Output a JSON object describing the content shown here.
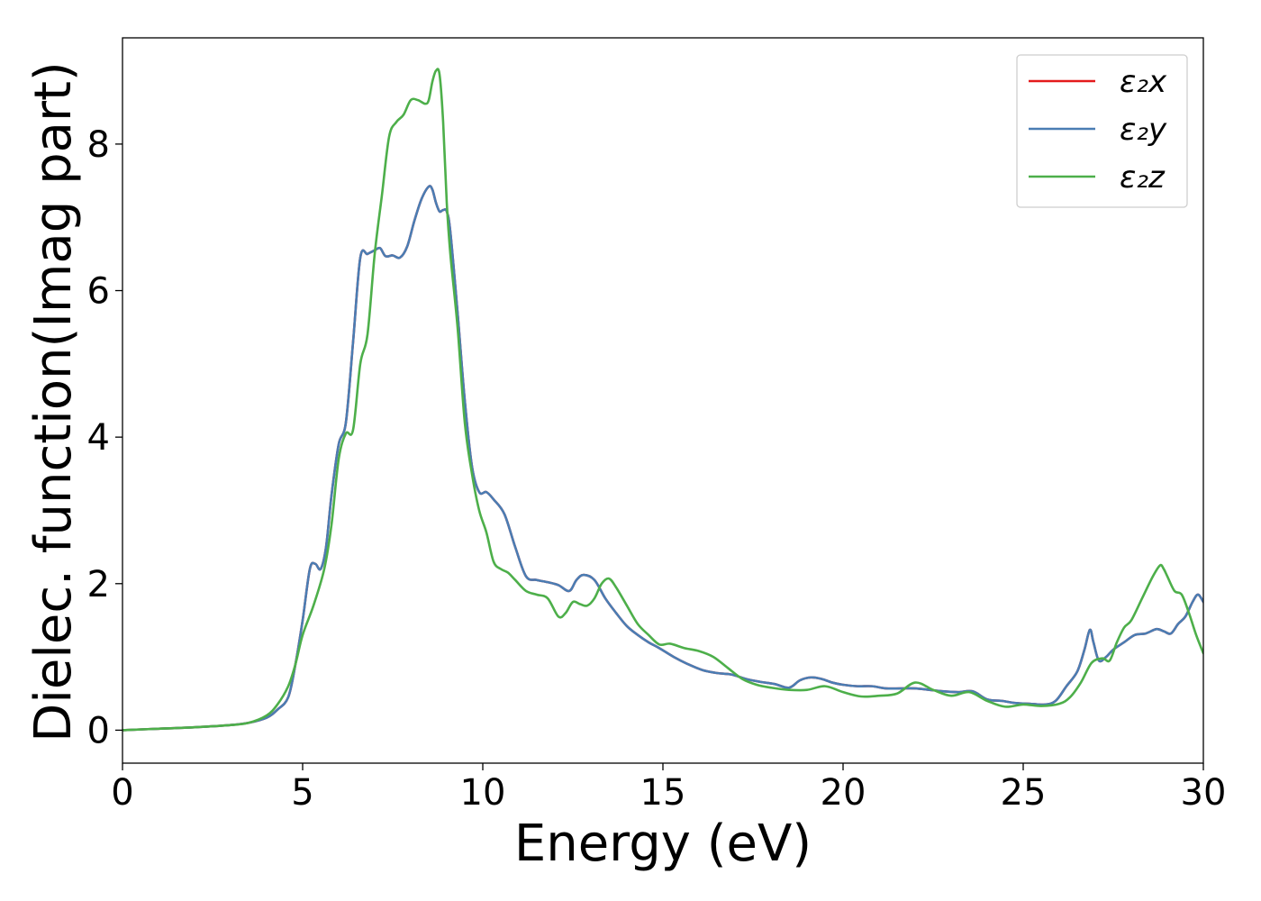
{
  "chart_data": {
    "type": "line",
    "title": "",
    "xlabel": "Energy (eV)",
    "ylabel": "Dielec. function(Imag part)",
    "xlim": [
      0,
      30
    ],
    "ylim": [
      -0.45,
      9.45
    ],
    "xticks": [
      0,
      5,
      10,
      15,
      20,
      25,
      30
    ],
    "yticks": [
      0,
      2,
      4,
      6,
      8
    ],
    "grid": false,
    "legend_position": "top-right",
    "series": [
      {
        "name": "ε₂x",
        "color": "#e41a1c",
        "x": [
          0,
          1,
          2,
          3,
          3.5,
          4,
          4.3,
          4.6,
          4.8,
          5,
          5.2,
          5.35,
          5.5,
          5.65,
          5.8,
          6,
          6.2,
          6.4,
          6.6,
          6.8,
          7,
          7.15,
          7.3,
          7.5,
          7.7,
          7.9,
          8.1,
          8.3,
          8.5,
          8.6,
          8.7,
          8.8,
          8.9,
          9,
          9.1,
          9.3,
          9.5,
          9.7,
          9.9,
          10.1,
          10.3,
          10.6,
          10.9,
          11.2,
          11.5,
          11.8,
          12.1,
          12.4,
          12.6,
          12.8,
          13.1,
          13.4,
          13.7,
          14,
          14.3,
          14.6,
          14.9,
          15.3,
          15.7,
          16.1,
          16.5,
          16.9,
          17.3,
          17.7,
          18.1,
          18.5,
          18.8,
          19.1,
          19.4,
          19.7,
          20,
          20.4,
          20.8,
          21.2,
          21.6,
          22,
          22.4,
          22.8,
          23.2,
          23.6,
          24,
          24.4,
          24.8,
          25.2,
          25.6,
          25.9,
          26.2,
          26.5,
          26.7,
          26.85,
          26.95,
          27.1,
          27.3,
          27.5,
          27.8,
          28.1,
          28.4,
          28.7,
          28.9,
          29.1,
          29.3,
          29.5,
          29.7,
          29.85,
          30
        ],
        "y": [
          0,
          0.02,
          0.04,
          0.07,
          0.1,
          0.17,
          0.28,
          0.45,
          0.9,
          1.5,
          2.2,
          2.27,
          2.2,
          2.5,
          3.2,
          3.9,
          4.2,
          5.3,
          6.45,
          6.5,
          6.55,
          6.58,
          6.47,
          6.48,
          6.45,
          6.6,
          6.95,
          7.25,
          7.42,
          7.38,
          7.2,
          7.08,
          7.1,
          7.08,
          6.8,
          5.7,
          4.5,
          3.6,
          3.25,
          3.25,
          3.15,
          2.95,
          2.5,
          2.1,
          2.05,
          2.02,
          1.98,
          1.9,
          2.05,
          2.12,
          2.05,
          1.8,
          1.6,
          1.42,
          1.3,
          1.2,
          1.12,
          1.0,
          0.9,
          0.82,
          0.78,
          0.76,
          0.7,
          0.66,
          0.63,
          0.58,
          0.68,
          0.72,
          0.7,
          0.65,
          0.62,
          0.6,
          0.6,
          0.57,
          0.57,
          0.57,
          0.55,
          0.53,
          0.52,
          0.53,
          0.42,
          0.4,
          0.37,
          0.36,
          0.35,
          0.4,
          0.6,
          0.8,
          1.1,
          1.37,
          1.2,
          0.95,
          1.0,
          1.1,
          1.2,
          1.3,
          1.32,
          1.38,
          1.35,
          1.32,
          1.45,
          1.55,
          1.75,
          1.85,
          1.75
        ]
      },
      {
        "name": "ε₂y",
        "color": "#4a7db3",
        "x": [
          0,
          1,
          2,
          3,
          3.5,
          4,
          4.3,
          4.6,
          4.8,
          5,
          5.2,
          5.35,
          5.5,
          5.65,
          5.8,
          6,
          6.2,
          6.4,
          6.6,
          6.8,
          7,
          7.15,
          7.3,
          7.5,
          7.7,
          7.9,
          8.1,
          8.3,
          8.5,
          8.6,
          8.7,
          8.8,
          8.9,
          9,
          9.1,
          9.3,
          9.5,
          9.7,
          9.9,
          10.1,
          10.3,
          10.6,
          10.9,
          11.2,
          11.5,
          11.8,
          12.1,
          12.4,
          12.6,
          12.8,
          13.1,
          13.4,
          13.7,
          14,
          14.3,
          14.6,
          14.9,
          15.3,
          15.7,
          16.1,
          16.5,
          16.9,
          17.3,
          17.7,
          18.1,
          18.5,
          18.8,
          19.1,
          19.4,
          19.7,
          20,
          20.4,
          20.8,
          21.2,
          21.6,
          22,
          22.4,
          22.8,
          23.2,
          23.6,
          24,
          24.4,
          24.8,
          25.2,
          25.6,
          25.9,
          26.2,
          26.5,
          26.7,
          26.85,
          26.95,
          27.1,
          27.3,
          27.5,
          27.8,
          28.1,
          28.4,
          28.7,
          28.9,
          29.1,
          29.3,
          29.5,
          29.7,
          29.85,
          30
        ],
        "y": [
          0,
          0.02,
          0.04,
          0.07,
          0.1,
          0.17,
          0.28,
          0.45,
          0.9,
          1.5,
          2.2,
          2.27,
          2.2,
          2.5,
          3.2,
          3.9,
          4.2,
          5.3,
          6.45,
          6.5,
          6.55,
          6.58,
          6.47,
          6.48,
          6.45,
          6.6,
          6.95,
          7.25,
          7.42,
          7.38,
          7.2,
          7.08,
          7.1,
          7.08,
          6.8,
          5.7,
          4.5,
          3.6,
          3.25,
          3.25,
          3.15,
          2.95,
          2.5,
          2.1,
          2.05,
          2.02,
          1.98,
          1.9,
          2.05,
          2.12,
          2.05,
          1.8,
          1.6,
          1.42,
          1.3,
          1.2,
          1.12,
          1.0,
          0.9,
          0.82,
          0.78,
          0.76,
          0.7,
          0.66,
          0.63,
          0.58,
          0.68,
          0.72,
          0.7,
          0.65,
          0.62,
          0.6,
          0.6,
          0.57,
          0.57,
          0.57,
          0.55,
          0.53,
          0.52,
          0.53,
          0.42,
          0.4,
          0.37,
          0.36,
          0.35,
          0.4,
          0.6,
          0.8,
          1.1,
          1.37,
          1.2,
          0.95,
          1.0,
          1.1,
          1.2,
          1.3,
          1.32,
          1.38,
          1.35,
          1.32,
          1.45,
          1.55,
          1.75,
          1.85,
          1.75
        ]
      },
      {
        "name": "ε₂z",
        "color": "#4daf4a",
        "x": [
          0,
          1,
          2,
          3,
          3.5,
          4,
          4.3,
          4.6,
          4.8,
          5,
          5.3,
          5.6,
          5.8,
          6,
          6.2,
          6.4,
          6.6,
          6.8,
          7,
          7.2,
          7.4,
          7.6,
          7.8,
          8,
          8.2,
          8.4,
          8.5,
          8.6,
          8.7,
          8.8,
          8.9,
          9,
          9.1,
          9.3,
          9.5,
          9.7,
          9.9,
          10.1,
          10.3,
          10.5,
          10.7,
          10.9,
          11.2,
          11.5,
          11.8,
          12.1,
          12.3,
          12.5,
          12.7,
          12.9,
          13.1,
          13.3,
          13.5,
          13.7,
          14,
          14.3,
          14.6,
          14.9,
          15.2,
          15.6,
          16,
          16.4,
          16.8,
          17.2,
          17.6,
          18,
          18.5,
          19,
          19.5,
          20,
          20.5,
          21,
          21.5,
          22,
          22.5,
          23,
          23.5,
          24,
          24.5,
          25,
          25.5,
          26,
          26.3,
          26.6,
          26.9,
          27.2,
          27.4,
          27.6,
          27.8,
          28,
          28.3,
          28.6,
          28.8,
          28.9,
          29,
          29.2,
          29.4,
          29.6,
          29.8,
          30
        ],
        "y": [
          0,
          0.02,
          0.04,
          0.07,
          0.1,
          0.2,
          0.35,
          0.6,
          0.9,
          1.3,
          1.7,
          2.2,
          2.8,
          3.7,
          4.05,
          4.1,
          5.0,
          5.4,
          6.5,
          7.3,
          8.1,
          8.3,
          8.4,
          8.6,
          8.6,
          8.55,
          8.6,
          8.85,
          9.0,
          8.95,
          8.3,
          7.2,
          6.5,
          5.5,
          4.2,
          3.5,
          3.0,
          2.7,
          2.3,
          2.2,
          2.15,
          2.05,
          1.9,
          1.85,
          1.8,
          1.55,
          1.6,
          1.75,
          1.72,
          1.7,
          1.8,
          2.0,
          2.07,
          1.95,
          1.7,
          1.45,
          1.3,
          1.17,
          1.18,
          1.12,
          1.08,
          1.0,
          0.85,
          0.7,
          0.62,
          0.58,
          0.55,
          0.55,
          0.6,
          0.52,
          0.46,
          0.47,
          0.5,
          0.65,
          0.55,
          0.47,
          0.52,
          0.4,
          0.32,
          0.35,
          0.33,
          0.36,
          0.45,
          0.65,
          0.92,
          0.98,
          0.95,
          1.2,
          1.4,
          1.5,
          1.8,
          2.1,
          2.25,
          2.2,
          2.1,
          1.9,
          1.85,
          1.6,
          1.3,
          1.05
        ]
      }
    ]
  }
}
